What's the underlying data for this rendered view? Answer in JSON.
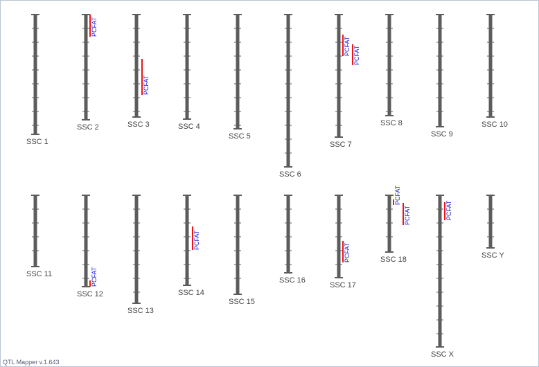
{
  "app": {
    "version_label": "QTL Mapper v.1.643"
  },
  "colors": {
    "chromosome": "#5c5c5c",
    "qtl_bar": "#e8161b",
    "qtl_text": "#1a1adc",
    "label": "#444444"
  },
  "chromosomes": [
    {
      "label": "SSC 1",
      "qtls": []
    },
    {
      "label": "SSC 2",
      "qtls": [
        {
          "trait": "PCFAT"
        }
      ]
    },
    {
      "label": "SSC 3",
      "qtls": [
        {
          "trait": "PCFAT"
        }
      ]
    },
    {
      "label": "SSC 4",
      "qtls": []
    },
    {
      "label": "SSC 5",
      "qtls": []
    },
    {
      "label": "SSC 6",
      "qtls": []
    },
    {
      "label": "SSC 7",
      "qtls": [
        {
          "trait": "PCFAT"
        },
        {
          "trait": "PCFAT"
        }
      ]
    },
    {
      "label": "SSC 8",
      "qtls": []
    },
    {
      "label": "SSC 9",
      "qtls": []
    },
    {
      "label": "SSC 10",
      "qtls": []
    },
    {
      "label": "SSC 11",
      "qtls": []
    },
    {
      "label": "SSC 12",
      "qtls": [
        {
          "trait": "PCFAT"
        }
      ]
    },
    {
      "label": "SSC 13",
      "qtls": []
    },
    {
      "label": "SSC 14",
      "qtls": [
        {
          "trait": "PCFAT"
        }
      ]
    },
    {
      "label": "SSC 15",
      "qtls": []
    },
    {
      "label": "SSC 16",
      "qtls": []
    },
    {
      "label": "SSC 17",
      "qtls": [
        {
          "trait": "PCFAT"
        }
      ]
    },
    {
      "label": "SSC 18",
      "qtls": [
        {
          "trait": "PCFAT"
        },
        {
          "trait": "PCFAT"
        }
      ]
    },
    {
      "label": "SSC X",
      "qtls": [
        {
          "trait": "PCFAT"
        }
      ]
    },
    {
      "label": "SSC Y",
      "qtls": []
    }
  ]
}
